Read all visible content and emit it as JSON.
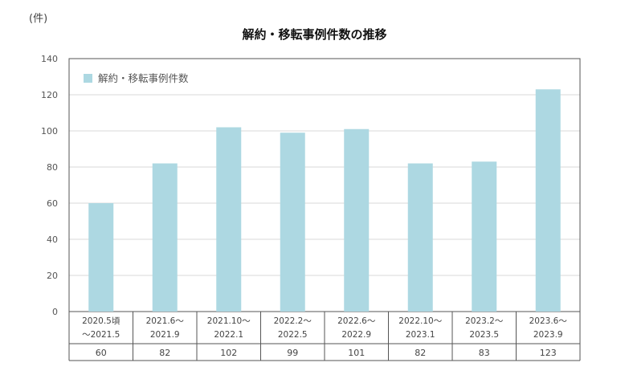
{
  "chart_data": {
    "type": "bar",
    "title": "解約・移転事例件数の推移",
    "unit_label": "(件)",
    "legend": [
      "解約・移転事例件数"
    ],
    "categories": [
      [
        "2020.5頃",
        "〜2021.5"
      ],
      [
        "2021.6〜",
        "2021.9"
      ],
      [
        "2021.10〜",
        "2022.1"
      ],
      [
        "2022.2〜",
        "2022.5"
      ],
      [
        "2022.6〜",
        "2022.9"
      ],
      [
        "2022.10〜",
        "2023.1"
      ],
      [
        "2023.2〜",
        "2023.5"
      ],
      [
        "2023.6〜",
        "2023.9"
      ]
    ],
    "series": [
      {
        "name": "解約・移転事例件数",
        "values": [
          60,
          82,
          102,
          99,
          101,
          82,
          83,
          123
        ]
      }
    ],
    "ylim": [
      0,
      140
    ],
    "yticks": [
      0,
      20,
      40,
      60,
      80,
      100,
      120,
      140
    ],
    "grid": true,
    "legend_position": "top-left",
    "data_table": true,
    "colors": {
      "bar": "#add8e2",
      "grid": "#d9d9d9",
      "axis": "#555555"
    }
  }
}
